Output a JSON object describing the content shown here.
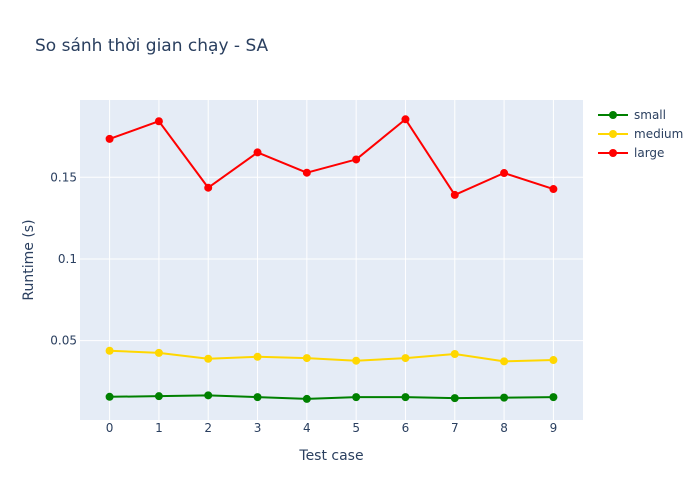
{
  "chart_data": {
    "type": "line",
    "title": "So sánh thời gian chạy - SA",
    "xlabel": "Test case",
    "ylabel": "Runtime (s)",
    "x": [
      0,
      1,
      2,
      3,
      4,
      5,
      6,
      7,
      8,
      9
    ],
    "xlim": [
      -0.6,
      9.6
    ],
    "ylim": [
      0.0014,
      0.1973
    ],
    "y_ticks": [
      0.05,
      0.1,
      0.15
    ],
    "y_tick_labels": [
      "0.05",
      "0.1",
      "0.15"
    ],
    "grid": true,
    "legend_position": "top-right",
    "plot_background": "#e5ecf6",
    "series": [
      {
        "name": "small",
        "color": "#008000",
        "values": [
          0.0156,
          0.016,
          0.0165,
          0.0154,
          0.0143,
          0.0154,
          0.0154,
          0.0148,
          0.0151,
          0.0154
        ]
      },
      {
        "name": "medium",
        "color": "#ffd700",
        "values": [
          0.0438,
          0.0425,
          0.0389,
          0.0401,
          0.0393,
          0.0377,
          0.0393,
          0.0418,
          0.0373,
          0.0381
        ]
      },
      {
        "name": "large",
        "color": "#ff0000",
        "values": [
          0.1735,
          0.1843,
          0.1436,
          0.1652,
          0.1528,
          0.1609,
          0.1855,
          0.1392,
          0.1526,
          0.1428
        ]
      }
    ]
  }
}
